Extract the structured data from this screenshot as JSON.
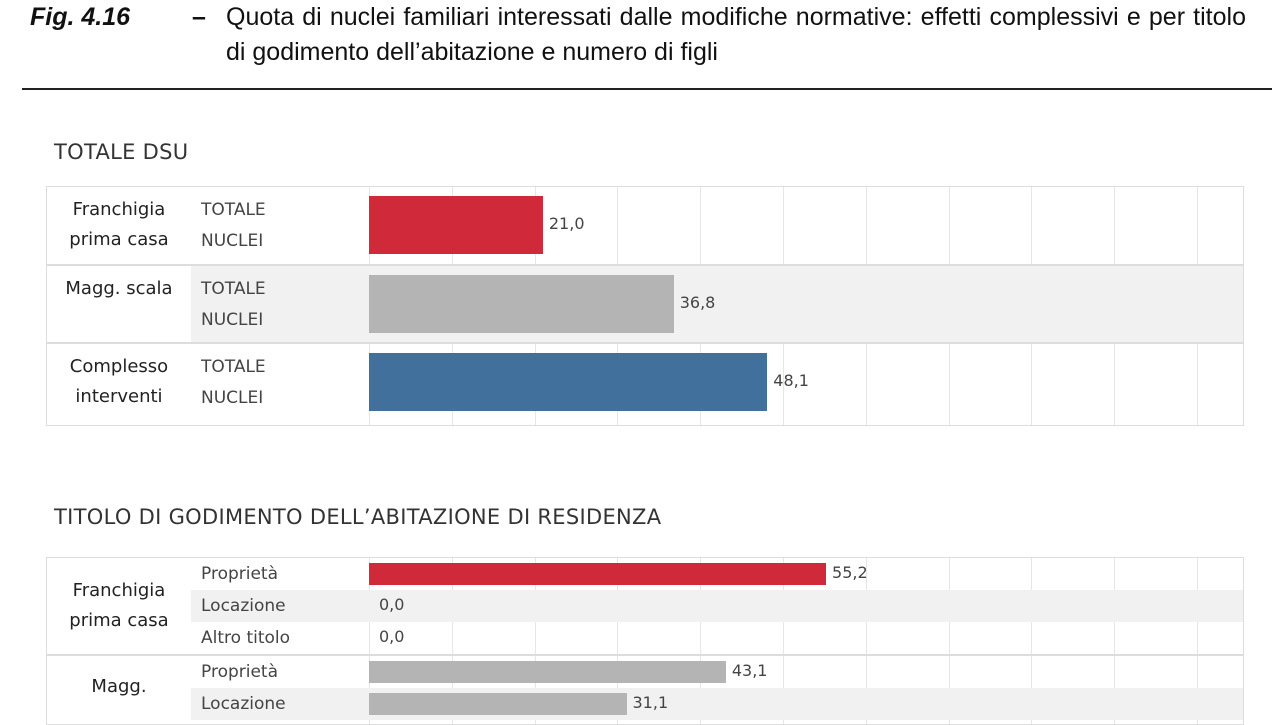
{
  "header": {
    "fig_number": "Fig. 4.16",
    "dash": "–",
    "title": "Quota di nuclei familiari interessati dalle modifiche normative: effetti complessivi e per titolo di godimento dell’abitazione e numero di figli"
  },
  "colors": {
    "franchigia": "#d0293a",
    "maggiorazione": "#b4b4b4",
    "complesso": "#41709c"
  },
  "chart_data": [
    {
      "type": "bar",
      "orientation": "horizontal",
      "title": "TOTALE DSU",
      "xlim": [
        0,
        105
      ],
      "grid": true,
      "grid_step": 10,
      "groups": [
        {
          "label": "Franchigia prima casa",
          "color_key": "franchigia",
          "rows": [
            {
              "label": "TOTALE NUCLEI",
              "value": 21.0,
              "value_label": "21,0"
            }
          ]
        },
        {
          "label": "Magg. scala",
          "color_key": "maggiorazione",
          "rows": [
            {
              "label": "TOTALE NUCLEI",
              "value": 36.8,
              "value_label": "36,8"
            }
          ]
        },
        {
          "label": "Complesso interventi",
          "color_key": "complesso",
          "rows": [
            {
              "label": "TOTALE NUCLEI",
              "value": 48.1,
              "value_label": "48,1"
            }
          ]
        }
      ]
    },
    {
      "type": "bar",
      "orientation": "horizontal",
      "title": "TITOLO DI GODIMENTO DELL’ABITAZIONE DI RESIDENZA",
      "xlim": [
        0,
        105
      ],
      "grid": true,
      "grid_step": 10,
      "groups": [
        {
          "label": "Franchigia prima casa",
          "color_key": "franchigia",
          "rows": [
            {
              "label": "Proprietà",
              "value": 55.2,
              "value_label": "55,2"
            },
            {
              "label": "Locazione",
              "value": 0.0,
              "value_label": "0,0"
            },
            {
              "label": "Altro titolo",
              "value": 0.0,
              "value_label": "0,0"
            }
          ]
        },
        {
          "label": "Magg.",
          "color_key": "maggiorazione",
          "rows": [
            {
              "label": "Proprietà",
              "value": 43.1,
              "value_label": "43,1"
            },
            {
              "label": "Locazione",
              "value": 31.1,
              "value_label": "31,1"
            }
          ]
        }
      ]
    }
  ]
}
